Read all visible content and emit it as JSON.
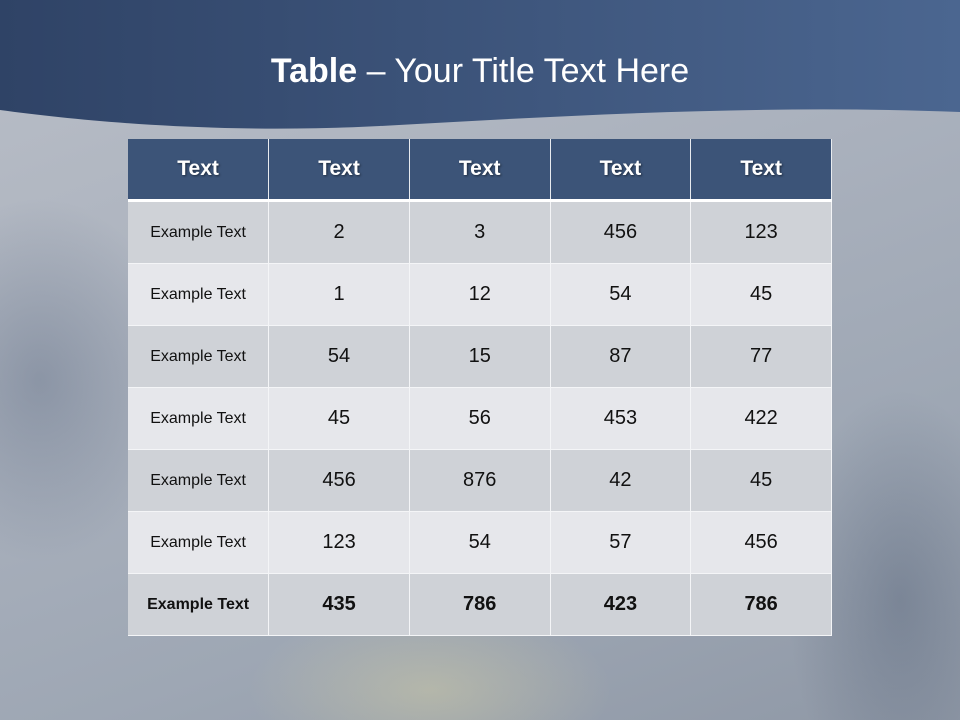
{
  "slide": {
    "title_bold": "Table",
    "title_rest": " – Your Title Text Here"
  },
  "table": {
    "headers": [
      "Text",
      "Text",
      "Text",
      "Text",
      "Text"
    ],
    "rows": [
      [
        "Example Text",
        "2",
        "3",
        "456",
        "123"
      ],
      [
        "Example Text",
        "1",
        "12",
        "54",
        "45"
      ],
      [
        "Example Text",
        "54",
        "15",
        "87",
        "77"
      ],
      [
        "Example Text",
        "45",
        "56",
        "453",
        "422"
      ],
      [
        "Example Text",
        "456",
        "876",
        "42",
        "45"
      ],
      [
        "Example Text",
        "123",
        "54",
        "57",
        "456"
      ],
      [
        "Example Text",
        "435",
        "786",
        "423",
        "786"
      ]
    ]
  },
  "colors": {
    "header_band": "#3a5075",
    "table_header": "#3c5478",
    "row_dark": "#cfd2d7",
    "row_light": "#e6e7eb"
  }
}
